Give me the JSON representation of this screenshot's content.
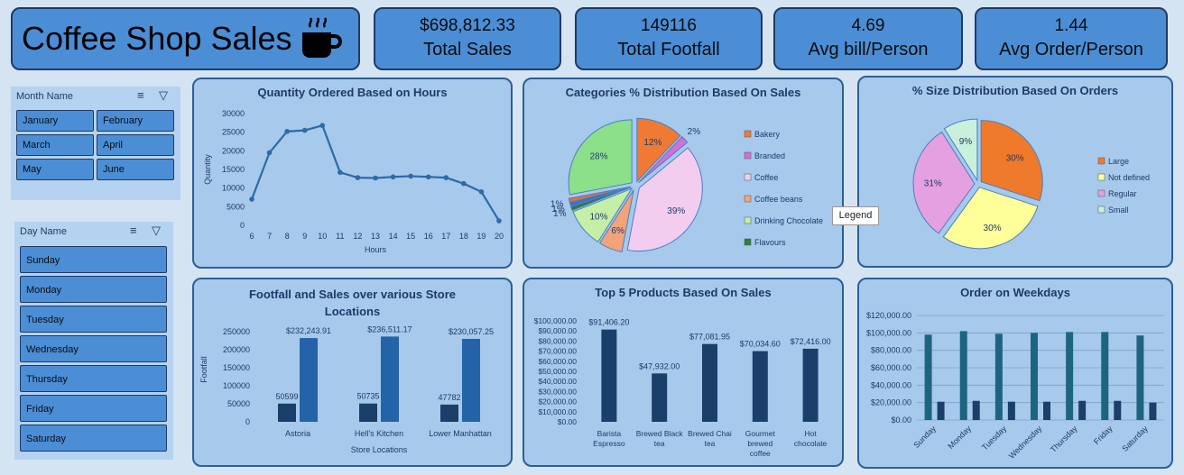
{
  "header": {
    "title": "Coffee Shop Sales",
    "icon": "coffee-cup-icon"
  },
  "kpis": [
    {
      "value": "$698,812.33",
      "label": "Total Sales"
    },
    {
      "value": "149116",
      "label": "Total Footfall"
    },
    {
      "value": "4.69",
      "label": "Avg bill/Person"
    },
    {
      "value": "1.44",
      "label": "Avg Order/Person"
    }
  ],
  "month_slicer": {
    "title": "Month Name",
    "items": [
      "January",
      "February",
      "March",
      "April",
      "May",
      "June"
    ]
  },
  "day_slicer": {
    "title": "Day Name",
    "items": [
      "Sunday",
      "Monday",
      "Tuesday",
      "Wednesday",
      "Thursday",
      "Friday",
      "Saturday"
    ]
  },
  "tooltip": "Legend",
  "colors": {
    "accent": "#4b8ed6",
    "panel": "#a7c9ec",
    "line": "#2d6aa6",
    "dark_bar": "#1b3f6b",
    "mid_bar": "#2563a8",
    "teal_bar": "#1d6480"
  },
  "chart_data": [
    {
      "type": "line",
      "title": "Quantity Ordered Based on Hours",
      "xlabel": "Hours",
      "ylabel": "Quantity",
      "x": [
        6,
        7,
        8,
        9,
        10,
        11,
        12,
        13,
        14,
        15,
        16,
        17,
        18,
        19,
        20
      ],
      "values": [
        7000,
        19500,
        25200,
        25500,
        26800,
        14200,
        12800,
        12700,
        13000,
        13200,
        13000,
        12800,
        11200,
        9000,
        1200
      ],
      "ylim": [
        0,
        30000
      ],
      "yticks": [
        "0",
        "5000",
        "10000",
        "15000",
        "20000",
        "25000",
        "30000"
      ]
    },
    {
      "type": "pie",
      "title": "Categories % Distribution Based On Sales",
      "slices": [
        {
          "name": "Bakery",
          "value": 12,
          "label": "12%",
          "color": "#ee7a34"
        },
        {
          "name": "Branded",
          "value": 2,
          "label": "2%",
          "color": "#d070d8"
        },
        {
          "name": "Coffee",
          "value": 39,
          "label": "39%",
          "color": "#f3cdef"
        },
        {
          "name": "Coffee beans",
          "value": 6,
          "label": "6%",
          "color": "#f2a37a"
        },
        {
          "name": "Drinking Chocolate",
          "value": 10,
          "label": "10%",
          "color": "#c5eea7"
        },
        {
          "name": "Flavours",
          "value": 1,
          "label": "1%",
          "color": "#2f7d3f"
        },
        {
          "name": "",
          "value": 1,
          "label": "1%",
          "color": "#3a6fd4"
        },
        {
          "name": "",
          "value": 1,
          "label": "1%",
          "color": "#ef6a3a"
        },
        {
          "name": "",
          "value": 28,
          "label": "28%",
          "color": "#8ce08a"
        }
      ],
      "legend": [
        "Bakery",
        "Branded",
        "Coffee",
        "Coffee beans",
        "Drinking Chocolate",
        "Flavours"
      ],
      "legend_position": "right"
    },
    {
      "type": "pie",
      "title": "% Size Distribution Based On Orders",
      "slices": [
        {
          "name": "Large",
          "value": 30,
          "label": "30%",
          "color": "#ef7a2c"
        },
        {
          "name": "Not defined",
          "value": 30,
          "label": "30%",
          "color": "#ffff99"
        },
        {
          "name": "Regular",
          "value": 31,
          "label": "31%",
          "color": "#e4a0e0"
        },
        {
          "name": "Small",
          "value": 9,
          "label": "9%",
          "color": "#c9f0da"
        }
      ],
      "legend": [
        "Large",
        "Not defined",
        "Regular",
        "Small"
      ],
      "legend_position": "right"
    },
    {
      "type": "bar",
      "title": "Footfall  and Sales over various Store Locations",
      "xlabel": "Store Locations",
      "ylabel": "Footfall",
      "categories": [
        "Astoria",
        "Hell's Kitchen",
        "Lower Manhattan"
      ],
      "series": [
        {
          "values": [
            50599,
            50735,
            47782
          ],
          "labels": [
            "50599",
            "50735",
            "47782"
          ],
          "color": "#1b3f6b"
        },
        {
          "values": [
            232243.91,
            236511.17,
            230057.25
          ],
          "labels": [
            "$232,243.91",
            "$236,511.17",
            "$230,057.25"
          ],
          "color": "#2563a8"
        }
      ],
      "ylim": [
        0,
        250000
      ],
      "yticks": [
        "0",
        "50000",
        "100000",
        "150000",
        "200000",
        "250000"
      ]
    },
    {
      "type": "bar",
      "title": "Top 5 Products Based On Sales",
      "categories": [
        "Barista Espresso",
        "Brewed Black tea",
        "Brewed Chai tea",
        "Gourmet brewed coffee",
        "Hot chocolate"
      ],
      "values": [
        91406.2,
        47932,
        77081.95,
        70034.6,
        72416
      ],
      "labels": [
        "$91,406.20",
        "$47,932.00",
        "$77,081.95",
        "$70,034.60",
        "$72,416.00"
      ],
      "ylim": [
        0,
        100000
      ],
      "yticks": [
        "$0.00",
        "$10,000.00",
        "$20,000.00",
        "$30,000.00",
        "$40,000.00",
        "$50,000.00",
        "$60,000.00",
        "$70,000.00",
        "$80,000.00",
        "$90,000.00",
        "$100,000.00"
      ]
    },
    {
      "type": "bar",
      "title": "Order on Weekdays",
      "categories": [
        "Sunday",
        "Monday",
        "Tuesday",
        "Wednesday",
        "Thursday",
        "Friday",
        "Saturday"
      ],
      "series": [
        {
          "values": [
            98000,
            102000,
            99000,
            100000,
            101000,
            101000,
            97000
          ],
          "color": "#1d6480"
        },
        {
          "values": [
            21000,
            22000,
            21000,
            21000,
            22000,
            22000,
            20000
          ],
          "color": "#1b3f6b"
        }
      ],
      "ylim": [
        0,
        120000
      ],
      "yticks": [
        "$0.00",
        "$20,000.00",
        "$40,000.00",
        "$60,000.00",
        "$80,000.00",
        "$100,000.00",
        "$120,000.00"
      ],
      "grid": true
    }
  ]
}
